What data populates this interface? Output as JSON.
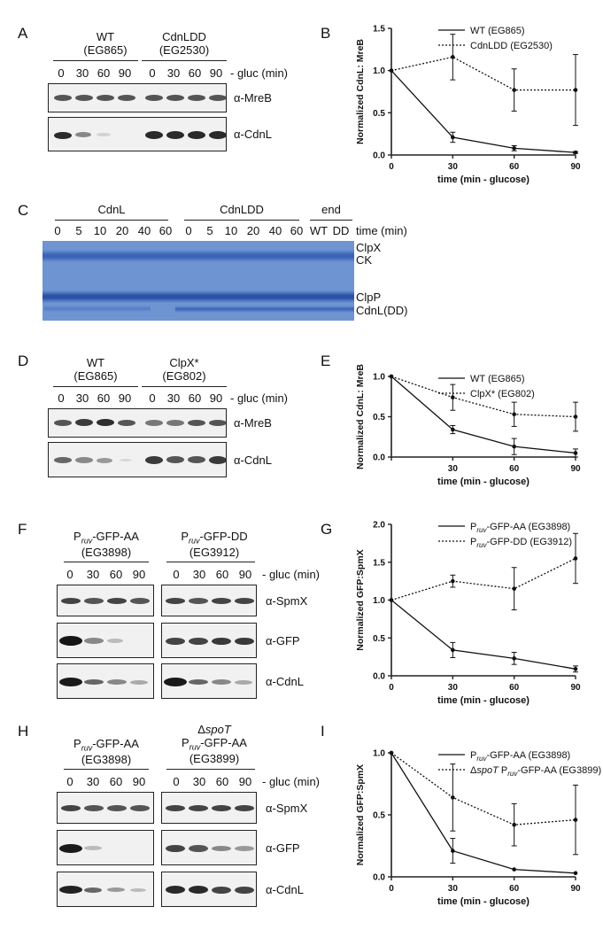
{
  "panels": {
    "A": {
      "letter": "A",
      "groups": [
        {
          "name": "WT",
          "strain": "(EG865)"
        },
        {
          "name": "CdnLDD",
          "strain": "(EG2530)"
        }
      ],
      "lanes": [
        "0",
        "30",
        "60",
        "90",
        "0",
        "30",
        "60",
        "90"
      ],
      "axis_label": "- gluc (min)",
      "blots": [
        "α-MreB",
        "α-CdnL"
      ]
    },
    "C": {
      "letter": "C",
      "groups": [
        "CdnL",
        "CdnLDD",
        "end"
      ],
      "lanes": [
        "0",
        "5",
        "10",
        "20",
        "40",
        "60",
        "0",
        "5",
        "10",
        "20",
        "40",
        "60",
        "WT",
        "DD"
      ],
      "axis_label": "time (min)",
      "band_labels": [
        "ClpX",
        "CK",
        "ClpP",
        "CdnL(DD)"
      ]
    },
    "D": {
      "letter": "D",
      "groups": [
        {
          "name": "WT",
          "strain": "(EG865)"
        },
        {
          "name": "ClpX*",
          "strain": "(EG802)"
        }
      ],
      "lanes": [
        "0",
        "30",
        "60",
        "90",
        "0",
        "30",
        "60",
        "90"
      ],
      "axis_label": "- gluc (min)",
      "blots": [
        "α-MreB",
        "α-CdnL"
      ]
    },
    "F": {
      "letter": "F",
      "groups": [
        {
          "prefix": "P",
          "sub": "ruv",
          "name": "-GFP-AA",
          "strain": "(EG3898)"
        },
        {
          "prefix": "P",
          "sub": "ruv",
          "name": "-GFP-DD",
          "strain": "(EG3912)"
        }
      ],
      "lanes": [
        "0",
        "30",
        "60",
        "90",
        "0",
        "30",
        "60",
        "90"
      ],
      "axis_label": "- gluc (min)",
      "blots": [
        "α-SpmX",
        "α-GFP",
        "α-CdnL"
      ]
    },
    "H": {
      "letter": "H",
      "groups": [
        {
          "prefix": "P",
          "sub": "ruv",
          "name": "-GFP-AA",
          "strain": "(EG3898)"
        },
        {
          "delta": "Δ",
          "gene": "spoT",
          "prefix": "P",
          "sub": "ruv",
          "name": "-GFP-AA",
          "strain": "(EG3899)"
        }
      ],
      "lanes": [
        "0",
        "30",
        "60",
        "90",
        "0",
        "30",
        "60",
        "90"
      ],
      "axis_label": "- gluc (min)",
      "blots": [
        "α-SpmX",
        "α-GFP",
        "α-CdnL"
      ]
    }
  },
  "chart_data": [
    {
      "panel": "B",
      "type": "line",
      "xlabel": "time (min - glucose)",
      "ylabel": "Normalized CdnL: MreB",
      "x": [
        0,
        30,
        60,
        90
      ],
      "xlim": [
        0,
        90
      ],
      "ylim": [
        0,
        1.5
      ],
      "xticks": [
        "0",
        "30",
        "60",
        "90"
      ],
      "yticks": [
        "0.0",
        "0.5",
        "1.0",
        "1.5"
      ],
      "legend": "top-right",
      "series": [
        {
          "name": "WT (EG865)",
          "style": "solid",
          "values": [
            1.0,
            0.21,
            0.08,
            0.03
          ],
          "errors": [
            0,
            0.06,
            0.03,
            0.01
          ]
        },
        {
          "name": "CdnLDD (EG2530)",
          "style": "dotted",
          "values": [
            1.0,
            1.16,
            0.77,
            0.77
          ],
          "errors": [
            0,
            0.27,
            0.25,
            0.42
          ]
        }
      ]
    },
    {
      "panel": "E",
      "type": "line",
      "xlabel": "time (min - glucose)",
      "ylabel": "Normalized CdnL: MreB",
      "x": [
        0,
        30,
        60,
        90
      ],
      "xlim": [
        0,
        90
      ],
      "ylim": [
        0,
        1.0
      ],
      "xticks": [
        "30",
        "60",
        "90"
      ],
      "yticks": [
        "0.0",
        "0.5",
        "1.0"
      ],
      "legend": "top-right",
      "series": [
        {
          "name": "WT (EG865)",
          "style": "solid",
          "values": [
            1.0,
            0.34,
            0.13,
            0.05
          ],
          "errors": [
            0,
            0.05,
            0.1,
            0.05
          ]
        },
        {
          "name": "ClpX* (EG802)",
          "style": "dotted",
          "values": [
            1.0,
            0.74,
            0.53,
            0.5
          ],
          "errors": [
            0,
            0.16,
            0.15,
            0.18
          ]
        }
      ]
    },
    {
      "panel": "G",
      "type": "line",
      "xlabel": "time (min - glucose)",
      "ylabel": "Normalized GFP:SpmX",
      "x": [
        0,
        30,
        60,
        90
      ],
      "xlim": [
        0,
        90
      ],
      "ylim": [
        0,
        2.0
      ],
      "xticks": [
        "0",
        "30",
        "60",
        "90"
      ],
      "yticks": [
        "0.0",
        "0.5",
        "1.0",
        "1.5",
        "2.0"
      ],
      "legend": "top-right",
      "series": [
        {
          "name_prefix": "P",
          "name_sub": "ruv",
          "name": "-GFP-AA (EG3898)",
          "style": "solid",
          "values": [
            1.0,
            0.34,
            0.23,
            0.09
          ],
          "errors": [
            0,
            0.1,
            0.08,
            0.04
          ]
        },
        {
          "name_prefix": "P",
          "name_sub": "ruv",
          "name": "-GFP-DD (EG3912)",
          "style": "dotted",
          "values": [
            1.0,
            1.25,
            1.15,
            1.55
          ],
          "errors": [
            0,
            0.08,
            0.28,
            0.33
          ]
        }
      ]
    },
    {
      "panel": "I",
      "type": "line",
      "xlabel": "time (min - glucose)",
      "ylabel": "Normalized GFP:SpmX",
      "x": [
        0,
        30,
        60,
        90
      ],
      "xlim": [
        0,
        90
      ],
      "ylim": [
        0,
        1.0
      ],
      "xticks": [
        "0",
        "30",
        "60",
        "90"
      ],
      "yticks": [
        "0.0",
        "0.5",
        "1.0"
      ],
      "legend": "top-right",
      "series": [
        {
          "name_prefix": "P",
          "name_sub": "ruv",
          "name": "-GFP-AA (EG3898)",
          "style": "solid",
          "values": [
            1.0,
            0.21,
            0.06,
            0.03
          ],
          "errors": [
            0,
            0.1,
            0,
            0
          ]
        },
        {
          "name_delta": "Δ",
          "name_gene": "spoT",
          "name_prefix": " P",
          "name_sub": "ruv",
          "name": "-GFP-AA (EG3899)",
          "style": "dotted",
          "values": [
            1.0,
            0.64,
            0.42,
            0.46
          ],
          "errors": [
            0,
            0.27,
            0.17,
            0.28
          ]
        }
      ]
    }
  ]
}
